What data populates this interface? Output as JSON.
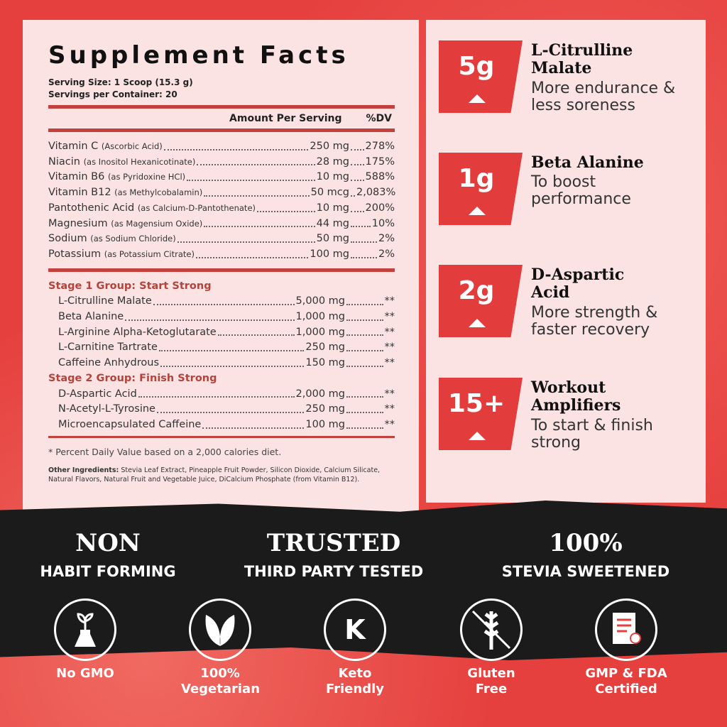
{
  "facts": {
    "title": "Supplement Facts",
    "serving_size": "Serving Size: 1 Scoop (15.3 g)",
    "servings": "Servings per Container: 20",
    "col_amount": "Amount Per Serving",
    "col_dv": "%DV",
    "nutrients": [
      {
        "name": "Vitamin C",
        "sub": "(Ascorbic Acid)",
        "amount": "250 mg",
        "dv": "278%"
      },
      {
        "name": "Niacin",
        "sub": "(as Inositol Hexanicotinate)",
        "amount": "28 mg",
        "dv": "175%"
      },
      {
        "name": "Vitamin B6",
        "sub": "(as Pyridoxine HCl)",
        "amount": "10 mg",
        "dv": "588%"
      },
      {
        "name": "Vitamin B12",
        "sub": "(as Methylcobalamin)",
        "amount": "50 mcg",
        "dv": "2,083%"
      },
      {
        "name": "Pantothenic Acid",
        "sub": "(as Calcium-D-Pantothenate)",
        "amount": "10 mg",
        "dv": "200%"
      },
      {
        "name": "Magnesium",
        "sub": "(as Magensium Oxide)",
        "amount": "44 mg",
        "dv": "10%"
      },
      {
        "name": "Sodium",
        "sub": "(as Sodium Chloride)",
        "amount": "50 mg",
        "dv": "2%"
      },
      {
        "name": "Potassium",
        "sub": "(as Potassium Citrate)",
        "amount": "100 mg",
        "dv": "2%"
      }
    ],
    "stage1": {
      "title": "Stage 1 Group: Start Strong",
      "items": [
        {
          "name": "L-Citrulline Malate",
          "amount": "5,000 mg",
          "dv": "**"
        },
        {
          "name": "Beta Alanine",
          "amount": "1,000 mg",
          "dv": "**"
        },
        {
          "name": "L-Arginine Alpha-Ketoglutarate",
          "amount": "1,000 mg",
          "dv": "**"
        },
        {
          "name": "L-Carnitine Tartrate",
          "amount": "250 mg",
          "dv": "**"
        },
        {
          "name": "Caffeine Anhydrous",
          "amount": "150 mg",
          "dv": "**"
        }
      ]
    },
    "stage2": {
      "title": "Stage 2 Group: Finish Strong",
      "items": [
        {
          "name": "D-Aspartic Acid",
          "amount": "2,000 mg",
          "dv": "**"
        },
        {
          "name": "N-Acetyl-L-Tyrosine",
          "amount": "250 mg",
          "dv": "**"
        },
        {
          "name": "Microencapsulated Caffeine",
          "amount": "100 mg",
          "dv": "**"
        }
      ]
    },
    "note": "* Percent Daily Value based on a 2,000 calories diet.",
    "other_label": "Other Ingredients:",
    "other_text": "Stevia Leaf Extract, Pineapple Fruit Powder, Silicon Dioxide, Calcium Silicate, Natural Flavors, Natural Fruit and Vegetable Juice, DiCalcium Phosphate (from Vitamin B12)."
  },
  "features": [
    {
      "value": "5g",
      "title": "L-Citrulline Malate",
      "desc": "More endurance & less soreness"
    },
    {
      "value": "1g",
      "title": "Beta Alanine",
      "desc": "To boost performance"
    },
    {
      "value": "2g",
      "title": "D-Aspartic Acid",
      "desc": "More strength & faster recovery"
    },
    {
      "value": "15+",
      "title": "Workout Amplifiers",
      "desc": "To start & finish strong"
    }
  ],
  "claims": [
    {
      "big": "NON",
      "small": "HABIT FORMING"
    },
    {
      "big": "TRUSTED",
      "small": "THIRD PARTY TESTED"
    },
    {
      "big": "100%",
      "small": "STEVIA SWEETENED"
    }
  ],
  "badges": [
    {
      "icon": "plant-flask-icon",
      "label": "No GMO"
    },
    {
      "icon": "leaves-icon",
      "label": "100% Vegetarian"
    },
    {
      "icon": "keto-k-icon",
      "glyph": "K",
      "label": "Keto Friendly"
    },
    {
      "icon": "no-wheat-icon",
      "label": "Gluten Free"
    },
    {
      "icon": "certificate-icon",
      "label": "GMP & FDA Certified"
    }
  ],
  "colors": {
    "accent": "#e23c3c",
    "panel": "#fbe3e3",
    "band": "#1c1b1b"
  }
}
